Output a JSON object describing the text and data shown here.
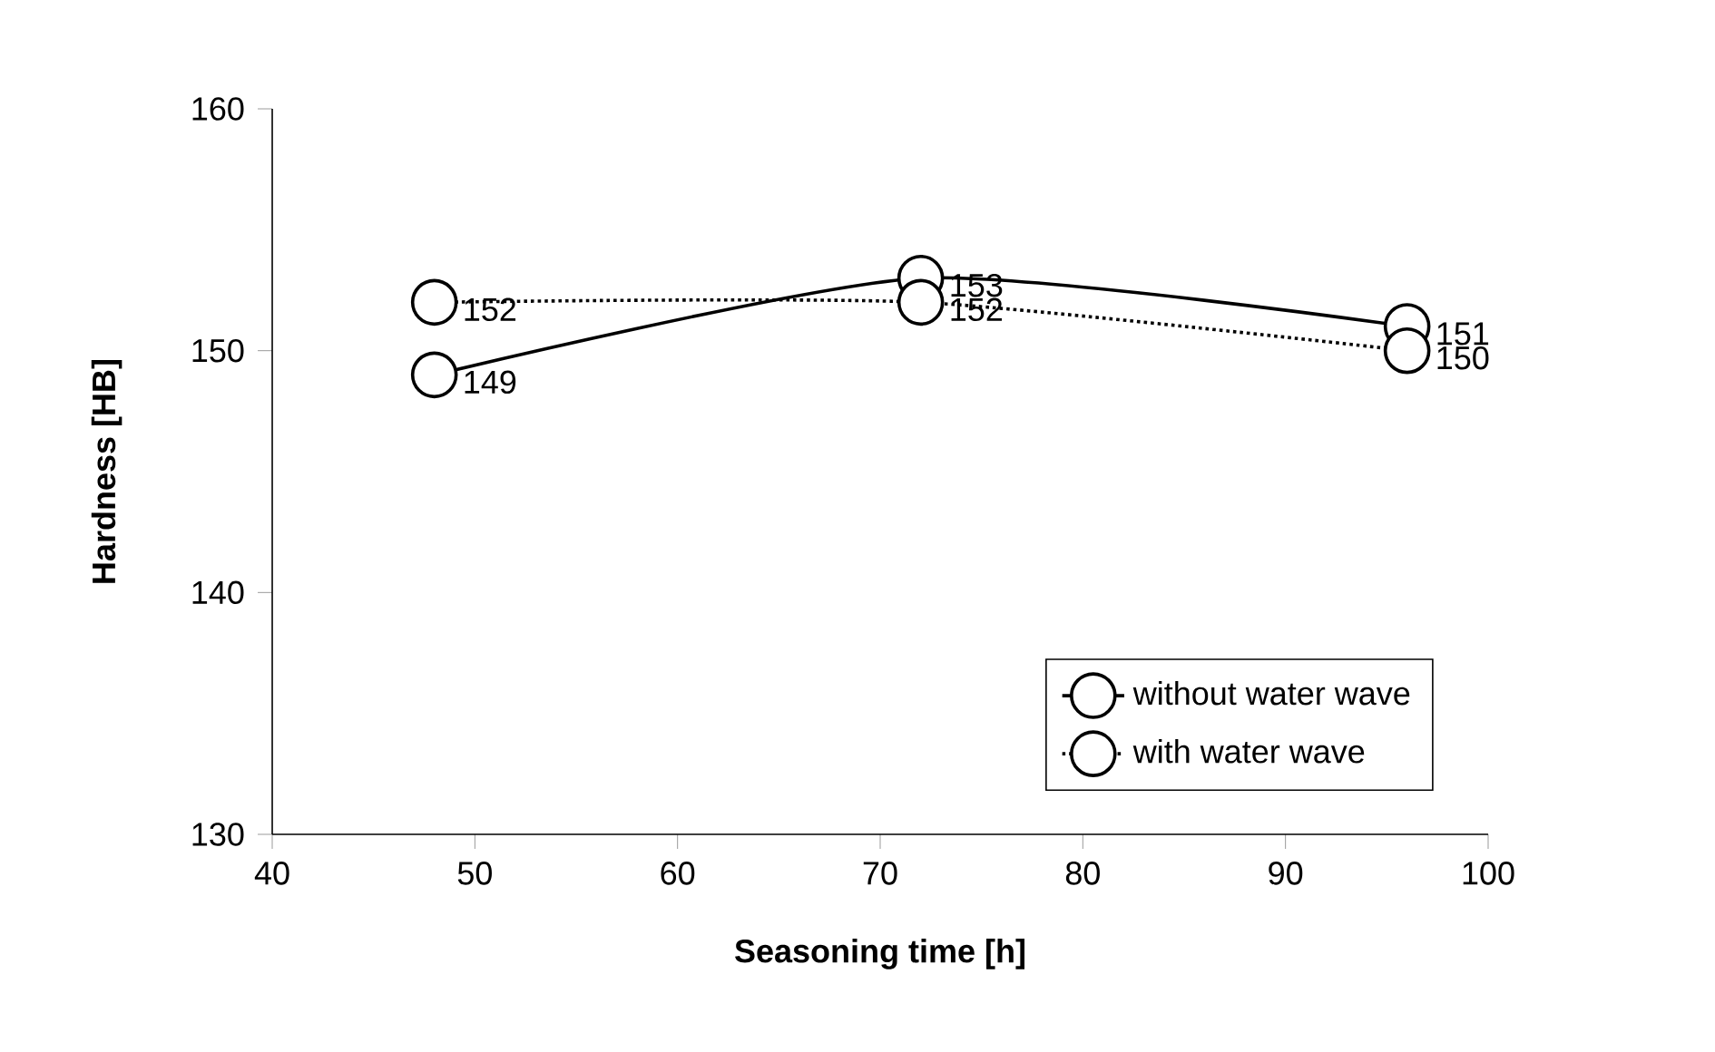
{
  "chart_data": {
    "type": "line",
    "xlabel": "Seasoning time [h]",
    "ylabel": "Hardness [HB]",
    "x": [
      48,
      72,
      96
    ],
    "series": [
      {
        "name": "without water wave",
        "color": "#000000",
        "values": [
          149,
          153,
          151
        ],
        "line_style": "solid"
      },
      {
        "name": "with water wave",
        "color": "#000000",
        "values": [
          152,
          152,
          150
        ],
        "line_style": "dotted"
      }
    ],
    "xlim": [
      40,
      100
    ],
    "xticks": [
      40,
      50,
      60,
      70,
      80,
      90,
      100
    ],
    "ylim": [
      130,
      160
    ],
    "yticks": [
      130,
      140,
      150,
      160
    ],
    "grid": false,
    "legend": "bottom right",
    "marker": "circle",
    "data_labels": true
  }
}
